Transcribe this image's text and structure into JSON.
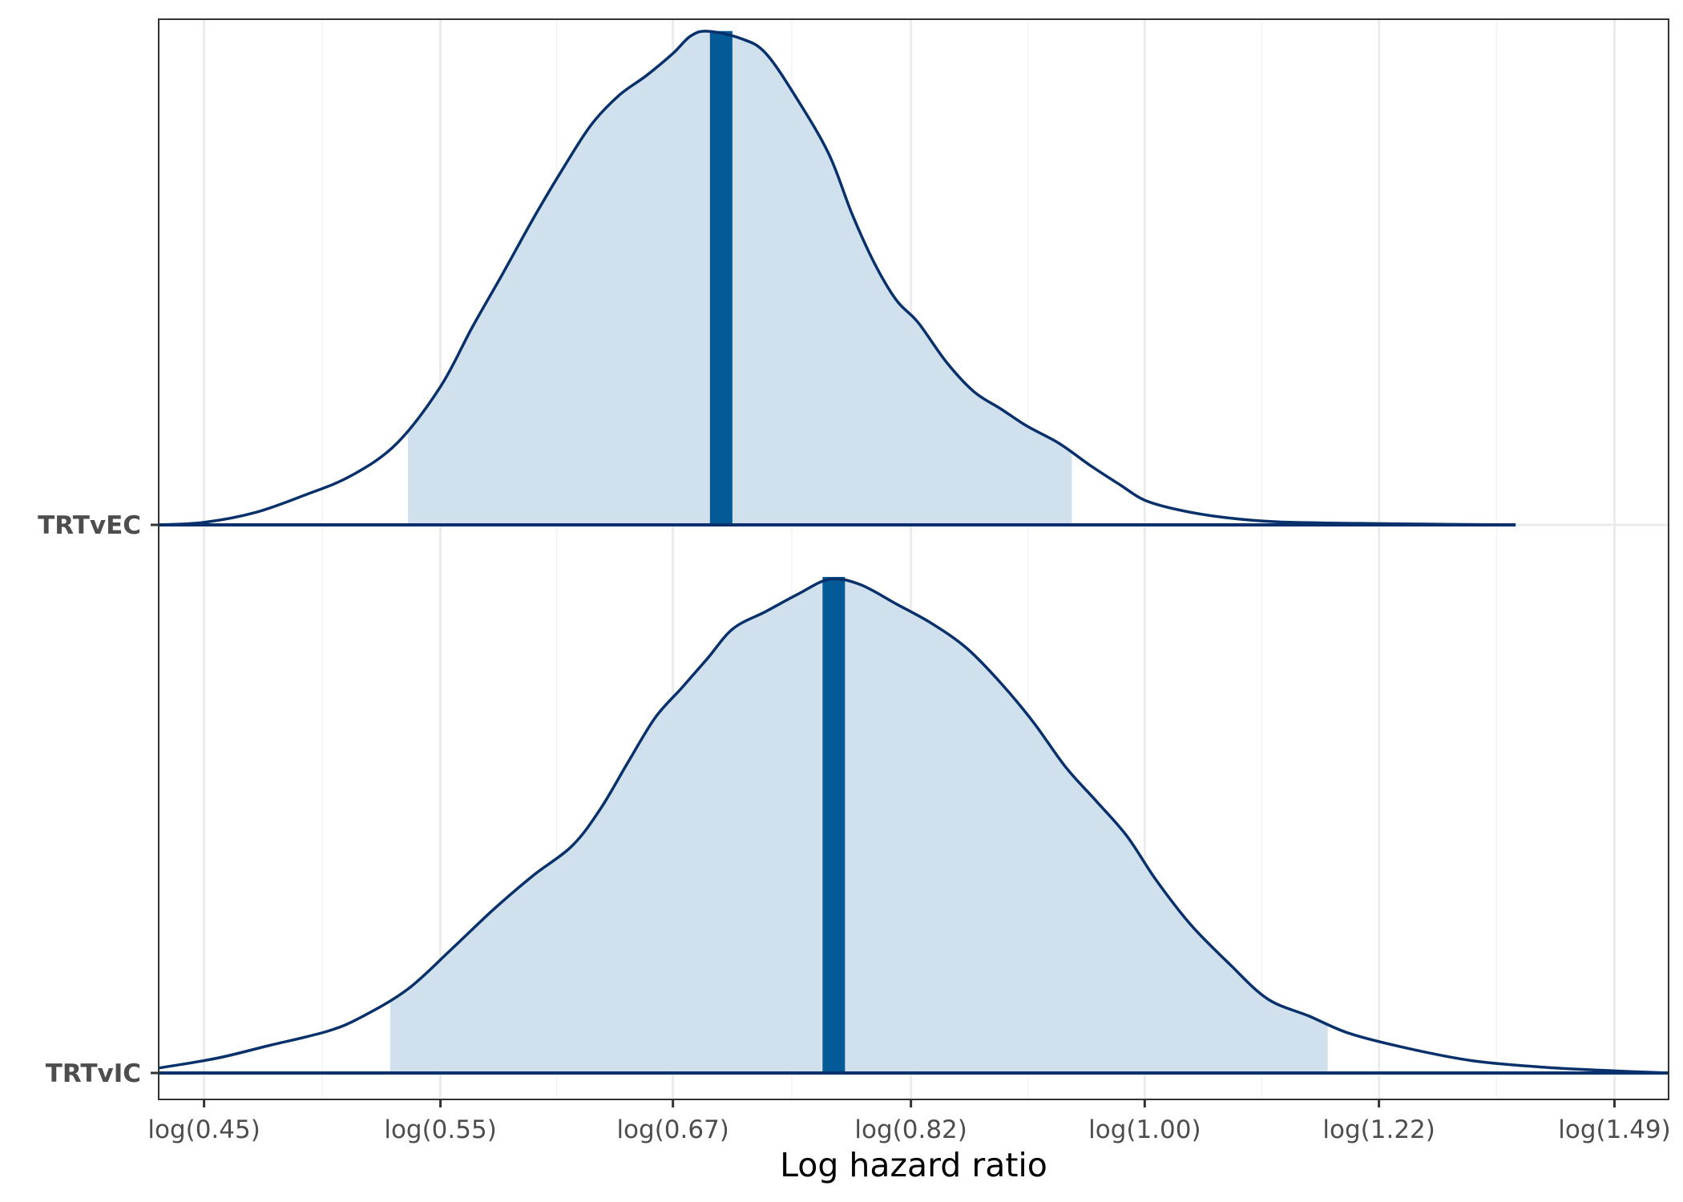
{
  "chart_data": {
    "type": "area",
    "xlabel": "Log hazard ratio",
    "ylabel": "",
    "x_scale": "log",
    "xlim": [
      0.433,
      1.56
    ],
    "grid": true,
    "x_ticks": [
      {
        "value": 0.45,
        "label": "log(0.45)"
      },
      {
        "value": 0.55,
        "label": "log(0.55)"
      },
      {
        "value": 0.67,
        "label": "log(0.67)"
      },
      {
        "value": 0.82,
        "label": "log(0.82)"
      },
      {
        "value": 1.0,
        "label": "log(1.00)"
      },
      {
        "value": 1.22,
        "label": "log(1.22)"
      },
      {
        "value": 1.49,
        "label": "log(1.49)"
      }
    ],
    "categories": [
      "TRTvEC",
      "TRTvIC"
    ],
    "colors": {
      "outline": "#08306b",
      "interval_fill": "#d0e0ec",
      "median": "#035a96",
      "grid_major": "#ebebeb",
      "grid_minor": "#f3f3f3",
      "panel_border": "#333333",
      "text": "#4d4d4d"
    },
    "series": [
      {
        "name": "TRTvEC",
        "median": 0.698,
        "interval": [
          0.535,
          0.94
        ],
        "density": [
          [
            0.433,
            0.0
          ],
          [
            0.45,
            0.005
          ],
          [
            0.47,
            0.025
          ],
          [
            0.49,
            0.06
          ],
          [
            0.51,
            0.1
          ],
          [
            0.53,
            0.165
          ],
          [
            0.55,
            0.28
          ],
          [
            0.565,
            0.4
          ],
          [
            0.58,
            0.51
          ],
          [
            0.595,
            0.62
          ],
          [
            0.61,
            0.72
          ],
          [
            0.625,
            0.81
          ],
          [
            0.64,
            0.87
          ],
          [
            0.655,
            0.91
          ],
          [
            0.67,
            0.955
          ],
          [
            0.68,
            0.99
          ],
          [
            0.69,
            1.0
          ],
          [
            0.71,
            0.985
          ],
          [
            0.725,
            0.955
          ],
          [
            0.745,
            0.86
          ],
          [
            0.765,
            0.75
          ],
          [
            0.78,
            0.63
          ],
          [
            0.795,
            0.53
          ],
          [
            0.81,
            0.455
          ],
          [
            0.825,
            0.41
          ],
          [
            0.845,
            0.33
          ],
          [
            0.865,
            0.27
          ],
          [
            0.885,
            0.235
          ],
          [
            0.905,
            0.2
          ],
          [
            0.93,
            0.165
          ],
          [
            0.955,
            0.12
          ],
          [
            0.98,
            0.08
          ],
          [
            1.0,
            0.05
          ],
          [
            1.03,
            0.03
          ],
          [
            1.07,
            0.015
          ],
          [
            1.12,
            0.006
          ],
          [
            1.2,
            0.003
          ],
          [
            1.3,
            0.001
          ],
          [
            1.37,
            0.0
          ]
        ]
      },
      {
        "name": "TRTvIC",
        "median": 0.768,
        "interval": [
          0.527,
          1.168
        ],
        "density": [
          [
            0.433,
            0.01
          ],
          [
            0.455,
            0.03
          ],
          [
            0.475,
            0.055
          ],
          [
            0.5,
            0.085
          ],
          [
            0.515,
            0.115
          ],
          [
            0.535,
            0.17
          ],
          [
            0.555,
            0.25
          ],
          [
            0.575,
            0.33
          ],
          [
            0.595,
            0.4
          ],
          [
            0.615,
            0.46
          ],
          [
            0.63,
            0.535
          ],
          [
            0.645,
            0.63
          ],
          [
            0.66,
            0.72
          ],
          [
            0.675,
            0.78
          ],
          [
            0.69,
            0.84
          ],
          [
            0.705,
            0.9
          ],
          [
            0.725,
            0.935
          ],
          [
            0.745,
            0.97
          ],
          [
            0.765,
            1.0
          ],
          [
            0.785,
            0.99
          ],
          [
            0.81,
            0.95
          ],
          [
            0.835,
            0.91
          ],
          [
            0.86,
            0.86
          ],
          [
            0.885,
            0.79
          ],
          [
            0.91,
            0.71
          ],
          [
            0.935,
            0.62
          ],
          [
            0.96,
            0.55
          ],
          [
            0.985,
            0.48
          ],
          [
            1.01,
            0.39
          ],
          [
            1.04,
            0.3
          ],
          [
            1.075,
            0.22
          ],
          [
            1.11,
            0.15
          ],
          [
            1.15,
            0.115
          ],
          [
            1.19,
            0.08
          ],
          [
            1.25,
            0.05
          ],
          [
            1.32,
            0.025
          ],
          [
            1.4,
            0.012
          ],
          [
            1.48,
            0.005
          ],
          [
            1.56,
            0.0
          ]
        ]
      }
    ]
  }
}
